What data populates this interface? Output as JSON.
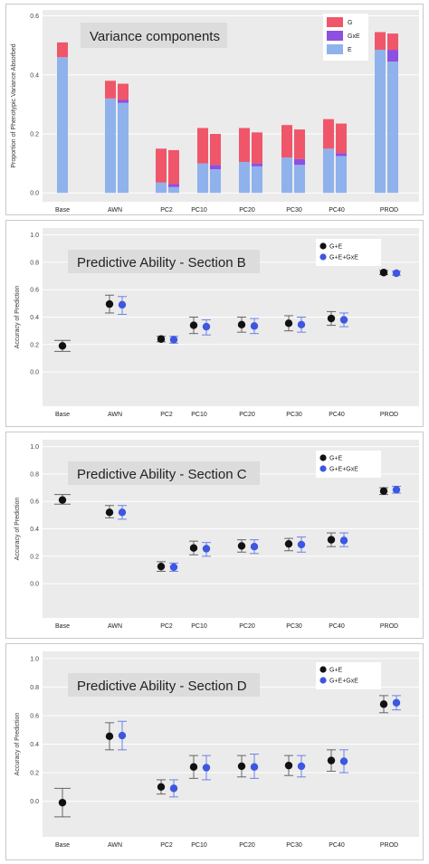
{
  "chart_data": [
    {
      "type": "bar",
      "stacked": true,
      "title": "Variance components",
      "ylabel": "Proportion of Phenotypic Variance Absorbed",
      "ylim": [
        -0.03,
        0.62
      ],
      "yticks": [
        "0.0",
        "0.2",
        "0.4",
        "0.6"
      ],
      "categories": [
        "Base",
        "AWN",
        "PC2",
        "PC10",
        "PC20",
        "PC30",
        "PC40",
        "PROD"
      ],
      "legend": [
        "G",
        "GxE",
        "E"
      ],
      "legend_position": "top-right",
      "colors": {
        "G": "#f0566a",
        "GxE": "#8e50e0",
        "E": "#8fb2ec"
      },
      "bars": [
        {
          "category": "Base",
          "E": 0.46,
          "GxE": 0.0,
          "G": 0.05
        },
        {
          "category": "AWN",
          "E": 0.32,
          "GxE": 0.0,
          "G": 0.06
        },
        {
          "category": "AWN",
          "E": 0.305,
          "GxE": 0.01,
          "G": 0.055
        },
        {
          "category": "PC2",
          "E": 0.035,
          "GxE": 0.0,
          "G": 0.115
        },
        {
          "category": "PC2",
          "E": 0.02,
          "GxE": 0.01,
          "G": 0.115
        },
        {
          "category": "PC10",
          "E": 0.1,
          "GxE": 0.0,
          "G": 0.12
        },
        {
          "category": "PC10",
          "E": 0.08,
          "GxE": 0.015,
          "G": 0.105
        },
        {
          "category": "PC20",
          "E": 0.105,
          "GxE": 0.0,
          "G": 0.115
        },
        {
          "category": "PC20",
          "E": 0.09,
          "GxE": 0.01,
          "G": 0.105
        },
        {
          "category": "PC30",
          "E": 0.12,
          "GxE": 0.0,
          "G": 0.11
        },
        {
          "category": "PC30",
          "E": 0.095,
          "GxE": 0.02,
          "G": 0.1
        },
        {
          "category": "PC40",
          "E": 0.15,
          "GxE": 0.0,
          "G": 0.1
        },
        {
          "category": "PC40",
          "E": 0.125,
          "GxE": 0.01,
          "G": 0.1
        },
        {
          "category": "PROD",
          "E": 0.485,
          "GxE": 0.0,
          "G": 0.06
        },
        {
          "category": "PROD",
          "E": 0.445,
          "GxE": 0.04,
          "G": 0.055
        }
      ]
    },
    {
      "type": "scatter",
      "title": "Predictive Ability - Section B",
      "ylabel": "Accuracy of Prediction",
      "ylim": [
        -0.25,
        1.05
      ],
      "yticks": [
        "0.0",
        "0.2",
        "0.4",
        "0.6",
        "0.8",
        "1.0"
      ],
      "categories": [
        "Base",
        "AWN",
        "PC2",
        "PC10",
        "PC20",
        "PC30",
        "PC40",
        "PROD"
      ],
      "legend": [
        "G+E",
        "G+E+GxE"
      ],
      "legend_position": "top-right",
      "series": [
        {
          "name": "G+E",
          "color": "#111111",
          "points": [
            {
              "category": "Base",
              "y": 0.19,
              "lo": 0.15,
              "hi": 0.23
            },
            {
              "category": "AWN",
              "y": 0.495,
              "lo": 0.43,
              "hi": 0.56
            },
            {
              "category": "PC2",
              "y": 0.24,
              "lo": 0.22,
              "hi": 0.26
            },
            {
              "category": "PC10",
              "y": 0.34,
              "lo": 0.28,
              "hi": 0.4
            },
            {
              "category": "PC20",
              "y": 0.345,
              "lo": 0.29,
              "hi": 0.4
            },
            {
              "category": "PC30",
              "y": 0.355,
              "lo": 0.3,
              "hi": 0.41
            },
            {
              "category": "PC40",
              "y": 0.39,
              "lo": 0.34,
              "hi": 0.44
            },
            {
              "category": "PROD",
              "y": 0.725,
              "lo": 0.71,
              "hi": 0.74
            }
          ]
        },
        {
          "name": "G+E+GxE",
          "color": "#3d57e0",
          "points": [
            {
              "category": "AWN",
              "y": 0.49,
              "lo": 0.42,
              "hi": 0.55
            },
            {
              "category": "PC2",
              "y": 0.235,
              "lo": 0.21,
              "hi": 0.26
            },
            {
              "category": "PC10",
              "y": 0.33,
              "lo": 0.27,
              "hi": 0.38
            },
            {
              "category": "PC20",
              "y": 0.335,
              "lo": 0.28,
              "hi": 0.39
            },
            {
              "category": "PC30",
              "y": 0.345,
              "lo": 0.29,
              "hi": 0.4
            },
            {
              "category": "PC40",
              "y": 0.38,
              "lo": 0.33,
              "hi": 0.43
            },
            {
              "category": "PROD",
              "y": 0.72,
              "lo": 0.705,
              "hi": 0.735
            }
          ]
        }
      ]
    },
    {
      "type": "scatter",
      "title": "Predictive Ability - Section C",
      "ylabel": "Accuracy of Prediction",
      "ylim": [
        -0.25,
        1.05
      ],
      "yticks": [
        "0.0",
        "0.2",
        "0.4",
        "0.6",
        "0.8",
        "1.0"
      ],
      "categories": [
        "Base",
        "AWN",
        "PC2",
        "PC10",
        "PC20",
        "PC30",
        "PC40",
        "PROD"
      ],
      "legend": [
        "G+E",
        "G+E+GxE"
      ],
      "legend_position": "top-right",
      "series": [
        {
          "name": "G+E",
          "color": "#111111",
          "points": [
            {
              "category": "Base",
              "y": 0.61,
              "lo": 0.58,
              "hi": 0.65
            },
            {
              "category": "AWN",
              "y": 0.52,
              "lo": 0.48,
              "hi": 0.57
            },
            {
              "category": "PC2",
              "y": 0.125,
              "lo": 0.09,
              "hi": 0.16
            },
            {
              "category": "PC10",
              "y": 0.26,
              "lo": 0.21,
              "hi": 0.31
            },
            {
              "category": "PC20",
              "y": 0.275,
              "lo": 0.23,
              "hi": 0.32
            },
            {
              "category": "PC30",
              "y": 0.29,
              "lo": 0.24,
              "hi": 0.33
            },
            {
              "category": "PC40",
              "y": 0.32,
              "lo": 0.27,
              "hi": 0.37
            },
            {
              "category": "PROD",
              "y": 0.675,
              "lo": 0.65,
              "hi": 0.7
            }
          ]
        },
        {
          "name": "G+E+GxE",
          "color": "#3d57e0",
          "points": [
            {
              "category": "AWN",
              "y": 0.52,
              "lo": 0.47,
              "hi": 0.57
            },
            {
              "category": "PC2",
              "y": 0.12,
              "lo": 0.09,
              "hi": 0.15
            },
            {
              "category": "PC10",
              "y": 0.255,
              "lo": 0.2,
              "hi": 0.3
            },
            {
              "category": "PC20",
              "y": 0.27,
              "lo": 0.22,
              "hi": 0.32
            },
            {
              "category": "PC30",
              "y": 0.285,
              "lo": 0.23,
              "hi": 0.34
            },
            {
              "category": "PC40",
              "y": 0.315,
              "lo": 0.27,
              "hi": 0.37
            },
            {
              "category": "PROD",
              "y": 0.685,
              "lo": 0.66,
              "hi": 0.71
            }
          ]
        }
      ]
    },
    {
      "type": "scatter",
      "title": "Predictive Ability - Section D",
      "ylabel": "Accuracy of Prediction",
      "ylim": [
        -0.25,
        1.05
      ],
      "yticks": [
        "0.0",
        "0.2",
        "0.4",
        "0.6",
        "0.8",
        "1.0"
      ],
      "categories": [
        "Base",
        "AWN",
        "PC2",
        "PC10",
        "PC20",
        "PC30",
        "PC40",
        "PROD"
      ],
      "legend": [
        "G+E",
        "G+E+GxE"
      ],
      "legend_position": "top-right",
      "series": [
        {
          "name": "G+E",
          "color": "#111111",
          "points": [
            {
              "category": "Base",
              "y": -0.01,
              "lo": -0.11,
              "hi": 0.09
            },
            {
              "category": "AWN",
              "y": 0.455,
              "lo": 0.36,
              "hi": 0.55
            },
            {
              "category": "PC2",
              "y": 0.1,
              "lo": 0.05,
              "hi": 0.15
            },
            {
              "category": "PC10",
              "y": 0.24,
              "lo": 0.16,
              "hi": 0.32
            },
            {
              "category": "PC20",
              "y": 0.245,
              "lo": 0.17,
              "hi": 0.32
            },
            {
              "category": "PC30",
              "y": 0.25,
              "lo": 0.18,
              "hi": 0.32
            },
            {
              "category": "PC40",
              "y": 0.285,
              "lo": 0.21,
              "hi": 0.36
            },
            {
              "category": "PROD",
              "y": 0.68,
              "lo": 0.62,
              "hi": 0.74
            }
          ]
        },
        {
          "name": "G+E+GxE",
          "color": "#3d57e0",
          "points": [
            {
              "category": "AWN",
              "y": 0.46,
              "lo": 0.36,
              "hi": 0.56
            },
            {
              "category": "PC2",
              "y": 0.09,
              "lo": 0.03,
              "hi": 0.15
            },
            {
              "category": "PC10",
              "y": 0.235,
              "lo": 0.15,
              "hi": 0.32
            },
            {
              "category": "PC20",
              "y": 0.24,
              "lo": 0.16,
              "hi": 0.33
            },
            {
              "category": "PC30",
              "y": 0.245,
              "lo": 0.17,
              "hi": 0.32
            },
            {
              "category": "PC40",
              "y": 0.28,
              "lo": 0.2,
              "hi": 0.36
            },
            {
              "category": "PROD",
              "y": 0.69,
              "lo": 0.64,
              "hi": 0.74
            }
          ]
        }
      ]
    }
  ]
}
